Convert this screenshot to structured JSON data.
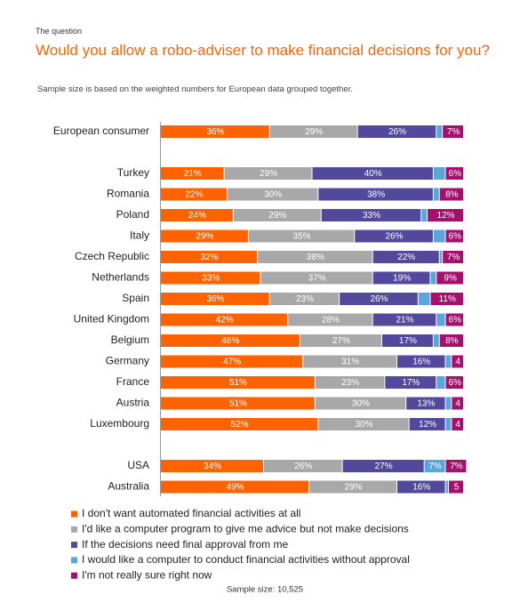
{
  "chart_data": {
    "type": "stacked-bar-horizontal",
    "kicker": "The question",
    "title": "Would you allow a robo-adviser to make financial decisions for you?",
    "subtitle": "Sample size is based on the weighted numbers for European data grouped together.",
    "footnote": "Sample size: 10,525",
    "categories": [
      "European consumer",
      "Turkey",
      "Romania",
      "Poland",
      "Italy",
      "Czech Republic",
      "Netherlands",
      "Spain",
      "United Kingdom",
      "Belgium",
      "Germany",
      "France",
      "Austria",
      "Luxembourg",
      "USA",
      "Australia"
    ],
    "series": [
      {
        "name": "I don't want automated financial activities at all",
        "color": "#ff6200",
        "values": [
          36,
          21,
          22,
          24,
          29,
          32,
          33,
          36,
          42,
          46,
          47,
          51,
          51,
          52,
          34,
          49
        ],
        "value_labels": [
          "36%",
          "21%",
          "22%",
          "24%",
          "29%",
          "32%",
          "33%",
          "36%",
          "42%",
          "46%",
          "47%",
          "51%",
          "51%",
          "52%",
          "34%",
          "49%"
        ]
      },
      {
        "name": "I'd like a computer program to give me advice but not make decisions",
        "color": "#a8a8a8",
        "values": [
          29,
          29,
          30,
          29,
          35,
          38,
          37,
          23,
          28,
          27,
          31,
          23,
          30,
          30,
          26,
          29
        ],
        "value_labels": [
          "29%",
          "29%",
          "30%",
          "29%",
          "35%",
          "38%",
          "37%",
          "23%",
          "28%",
          "27%",
          "31%",
          "23%",
          "30%",
          "30%",
          "26%",
          "29%"
        ]
      },
      {
        "name": "If the decisions need final approval from me",
        "color": "#52489c",
        "values": [
          26,
          40,
          38,
          33,
          26,
          22,
          19,
          26,
          21,
          17,
          16,
          17,
          13,
          12,
          27,
          16
        ],
        "value_labels": [
          "26%",
          "40%",
          "38%",
          "33%",
          "26%",
          "22%",
          "19%",
          "26%",
          "21%",
          "17%",
          "16%",
          "17%",
          "13%",
          "12%",
          "27%",
          "16%"
        ]
      },
      {
        "name": "I would like a computer to conduct financial activities without approval",
        "color": "#5aa5dc",
        "values": [
          2,
          4,
          2,
          2,
          4,
          1,
          2,
          4,
          3,
          2,
          2,
          3,
          2,
          2,
          7,
          1
        ],
        "value_labels": [
          null,
          null,
          null,
          null,
          null,
          null,
          null,
          null,
          null,
          null,
          null,
          null,
          null,
          null,
          "7%",
          null
        ]
      },
      {
        "name": "I'm not really sure right now",
        "color": "#a5106c",
        "values": [
          7,
          6,
          8,
          12,
          6,
          7,
          9,
          11,
          6,
          8,
          4,
          6,
          4,
          4,
          7,
          5
        ],
        "value_labels": [
          "7%",
          "6%",
          "8%",
          "12%",
          "6%",
          "7%",
          "9%",
          "11%",
          "6%",
          "8%",
          "4",
          "6%",
          "4",
          "4",
          "7%",
          "5"
        ]
      }
    ]
  }
}
